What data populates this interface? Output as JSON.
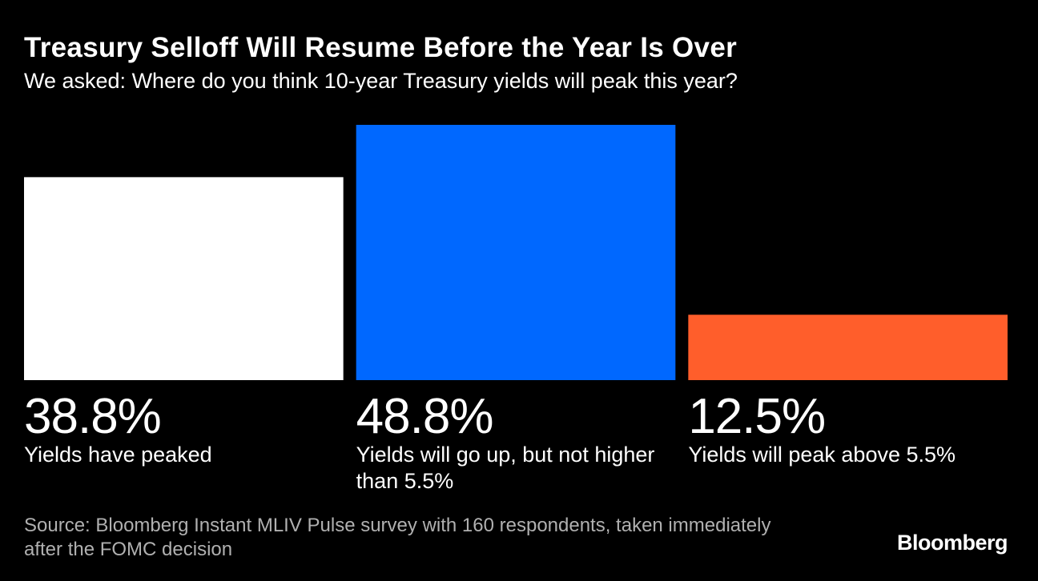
{
  "header": {
    "title": "Treasury Selloff Will Resume Before the Year Is Over",
    "subtitle": "We asked: Where do you think 10-year Treasury yields will peak this year?"
  },
  "chart_data": {
    "type": "bar",
    "title": "Treasury Selloff Will Resume Before the Year Is Over",
    "subtitle": "We asked: Where do you think 10-year Treasury yields will peak this year?",
    "categories": [
      "Yields have peaked",
      "Yields will go up, but not higher than 5.5%",
      "Yields will peak above 5.5%"
    ],
    "values": [
      38.8,
      48.8,
      12.5
    ],
    "value_labels": [
      "38.8%",
      "48.8%",
      "12.5%"
    ],
    "colors": [
      "#ffffff",
      "#0068ff",
      "#ff5e2b"
    ],
    "ylim": [
      0,
      48.8
    ],
    "grid": false,
    "legend": "none"
  },
  "footer": {
    "source": "Source: Bloomberg Instant MLIV Pulse survey with 160 respondents, taken immediately after the FOMC decision",
    "logo": "Bloomberg"
  }
}
